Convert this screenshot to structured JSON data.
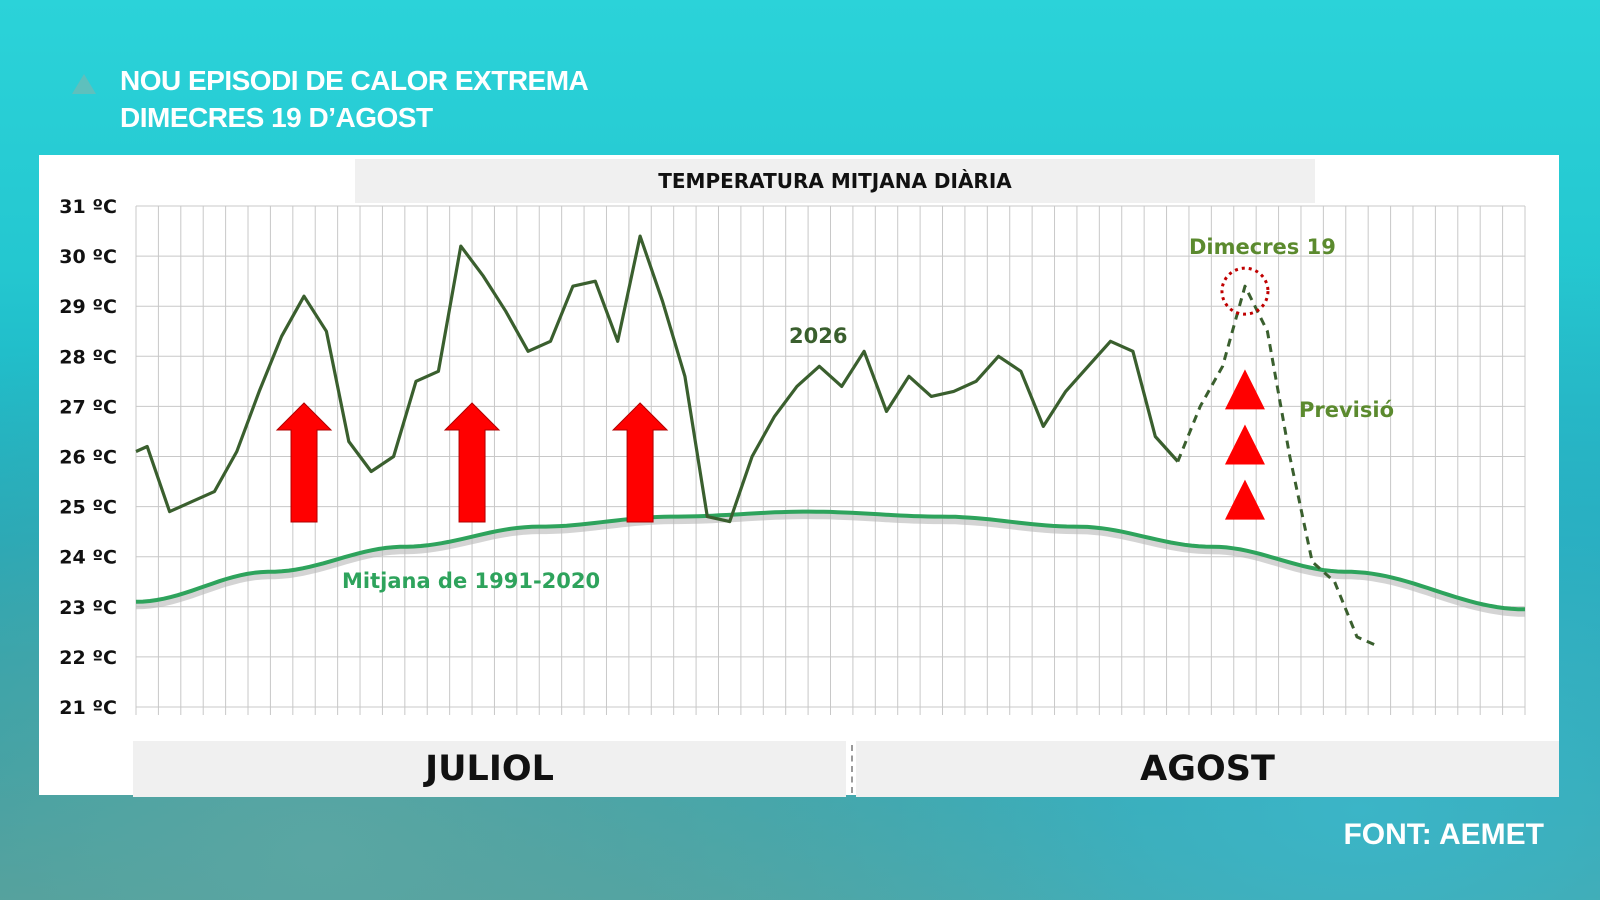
{
  "header": {
    "title_line1": "NOU EPISODI DE CALOR EXTREMA",
    "title_line2": "DIMECRES 19 D’AGOST"
  },
  "source": "FONT:  AEMET",
  "chart_data": {
    "type": "line",
    "title": "TEMPERATURA MITJANA DIÀRIA",
    "ylim": [
      21,
      31
    ],
    "yticks": [
      "21 ºC",
      "22 ºC",
      "23 ºC",
      "24 ºC",
      "25 ºC",
      "26 ºC",
      "27 ºC",
      "28 ºC",
      "29 ºC",
      "30 ºC",
      "31 ºC"
    ],
    "x_months": [
      "JULIOL",
      "AGOST"
    ],
    "x_range": [
      0,
      62
    ],
    "grid": true,
    "series": [
      {
        "name": "2026",
        "color": "#3a5f2e",
        "style": "solid",
        "x": [
          0,
          0.5,
          1.5,
          2.5,
          3.5,
          4.5,
          5.5,
          6.5,
          7.5,
          8.5,
          9.5,
          10.5,
          11.5,
          12.5,
          13.5,
          14.5,
          15.5,
          16.5,
          17.5,
          18.5,
          19.5,
          20.5,
          21.5,
          22.5,
          23.5,
          24.5,
          25.5,
          26.5,
          27.5,
          28.5,
          29.5,
          30.5,
          31.5,
          32.5,
          33.5,
          34.5,
          35.5,
          36.5,
          37.5,
          38.5,
          39.5,
          40.5,
          41.5,
          42.5,
          43.5,
          44.5,
          45.5,
          46.5
        ],
        "values": [
          26.1,
          26.2,
          24.9,
          25.1,
          25.3,
          26.1,
          27.3,
          28.4,
          29.2,
          28.5,
          26.3,
          25.7,
          26.0,
          27.5,
          27.7,
          30.2,
          29.6,
          28.9,
          28.1,
          28.3,
          29.4,
          29.5,
          28.3,
          30.4,
          29.1,
          27.6,
          24.8,
          24.7,
          26.0,
          26.8,
          27.4,
          27.8,
          27.4,
          28.1,
          26.9,
          27.6,
          27.2,
          27.3,
          27.5,
          28.0,
          27.7,
          26.6,
          27.3,
          27.8,
          28.3,
          28.1,
          26.4,
          25.9
        ]
      },
      {
        "name": "Previsió",
        "color": "#3a5f2e",
        "style": "dashed",
        "x": [
          46.5,
          47.5,
          48.5,
          49.5,
          50.5,
          51.5,
          52.5,
          53.5,
          54.5,
          55.5
        ],
        "values": [
          25.9,
          27.0,
          27.8,
          29.4,
          28.5,
          26.0,
          23.9,
          23.5,
          22.4,
          22.2
        ]
      },
      {
        "name": "Mitjana de 1991-2020",
        "color": "#2ea35c",
        "style": "solid",
        "x": [
          0,
          6,
          12,
          18,
          24,
          30,
          36,
          42,
          48,
          54,
          62
        ],
        "values": [
          23.1,
          23.7,
          24.2,
          24.6,
          24.8,
          24.9,
          24.8,
          24.6,
          24.2,
          23.7,
          22.95
        ]
      }
    ],
    "annotations": {
      "label_2026": "2026",
      "label_mean": "Mitjana de 1991-2020",
      "label_forecast": "Previsió",
      "label_highlight": "Dimecres 19",
      "highlight_x": 49.5,
      "highlight_y": 29.3,
      "up_arrow_colors": "#ff0000",
      "up_arrows_x": [
        7.5,
        15.0,
        22.5
      ],
      "triangles_x": 49.5,
      "triangles_y": [
        27.3,
        26.2,
        25.1
      ]
    }
  }
}
